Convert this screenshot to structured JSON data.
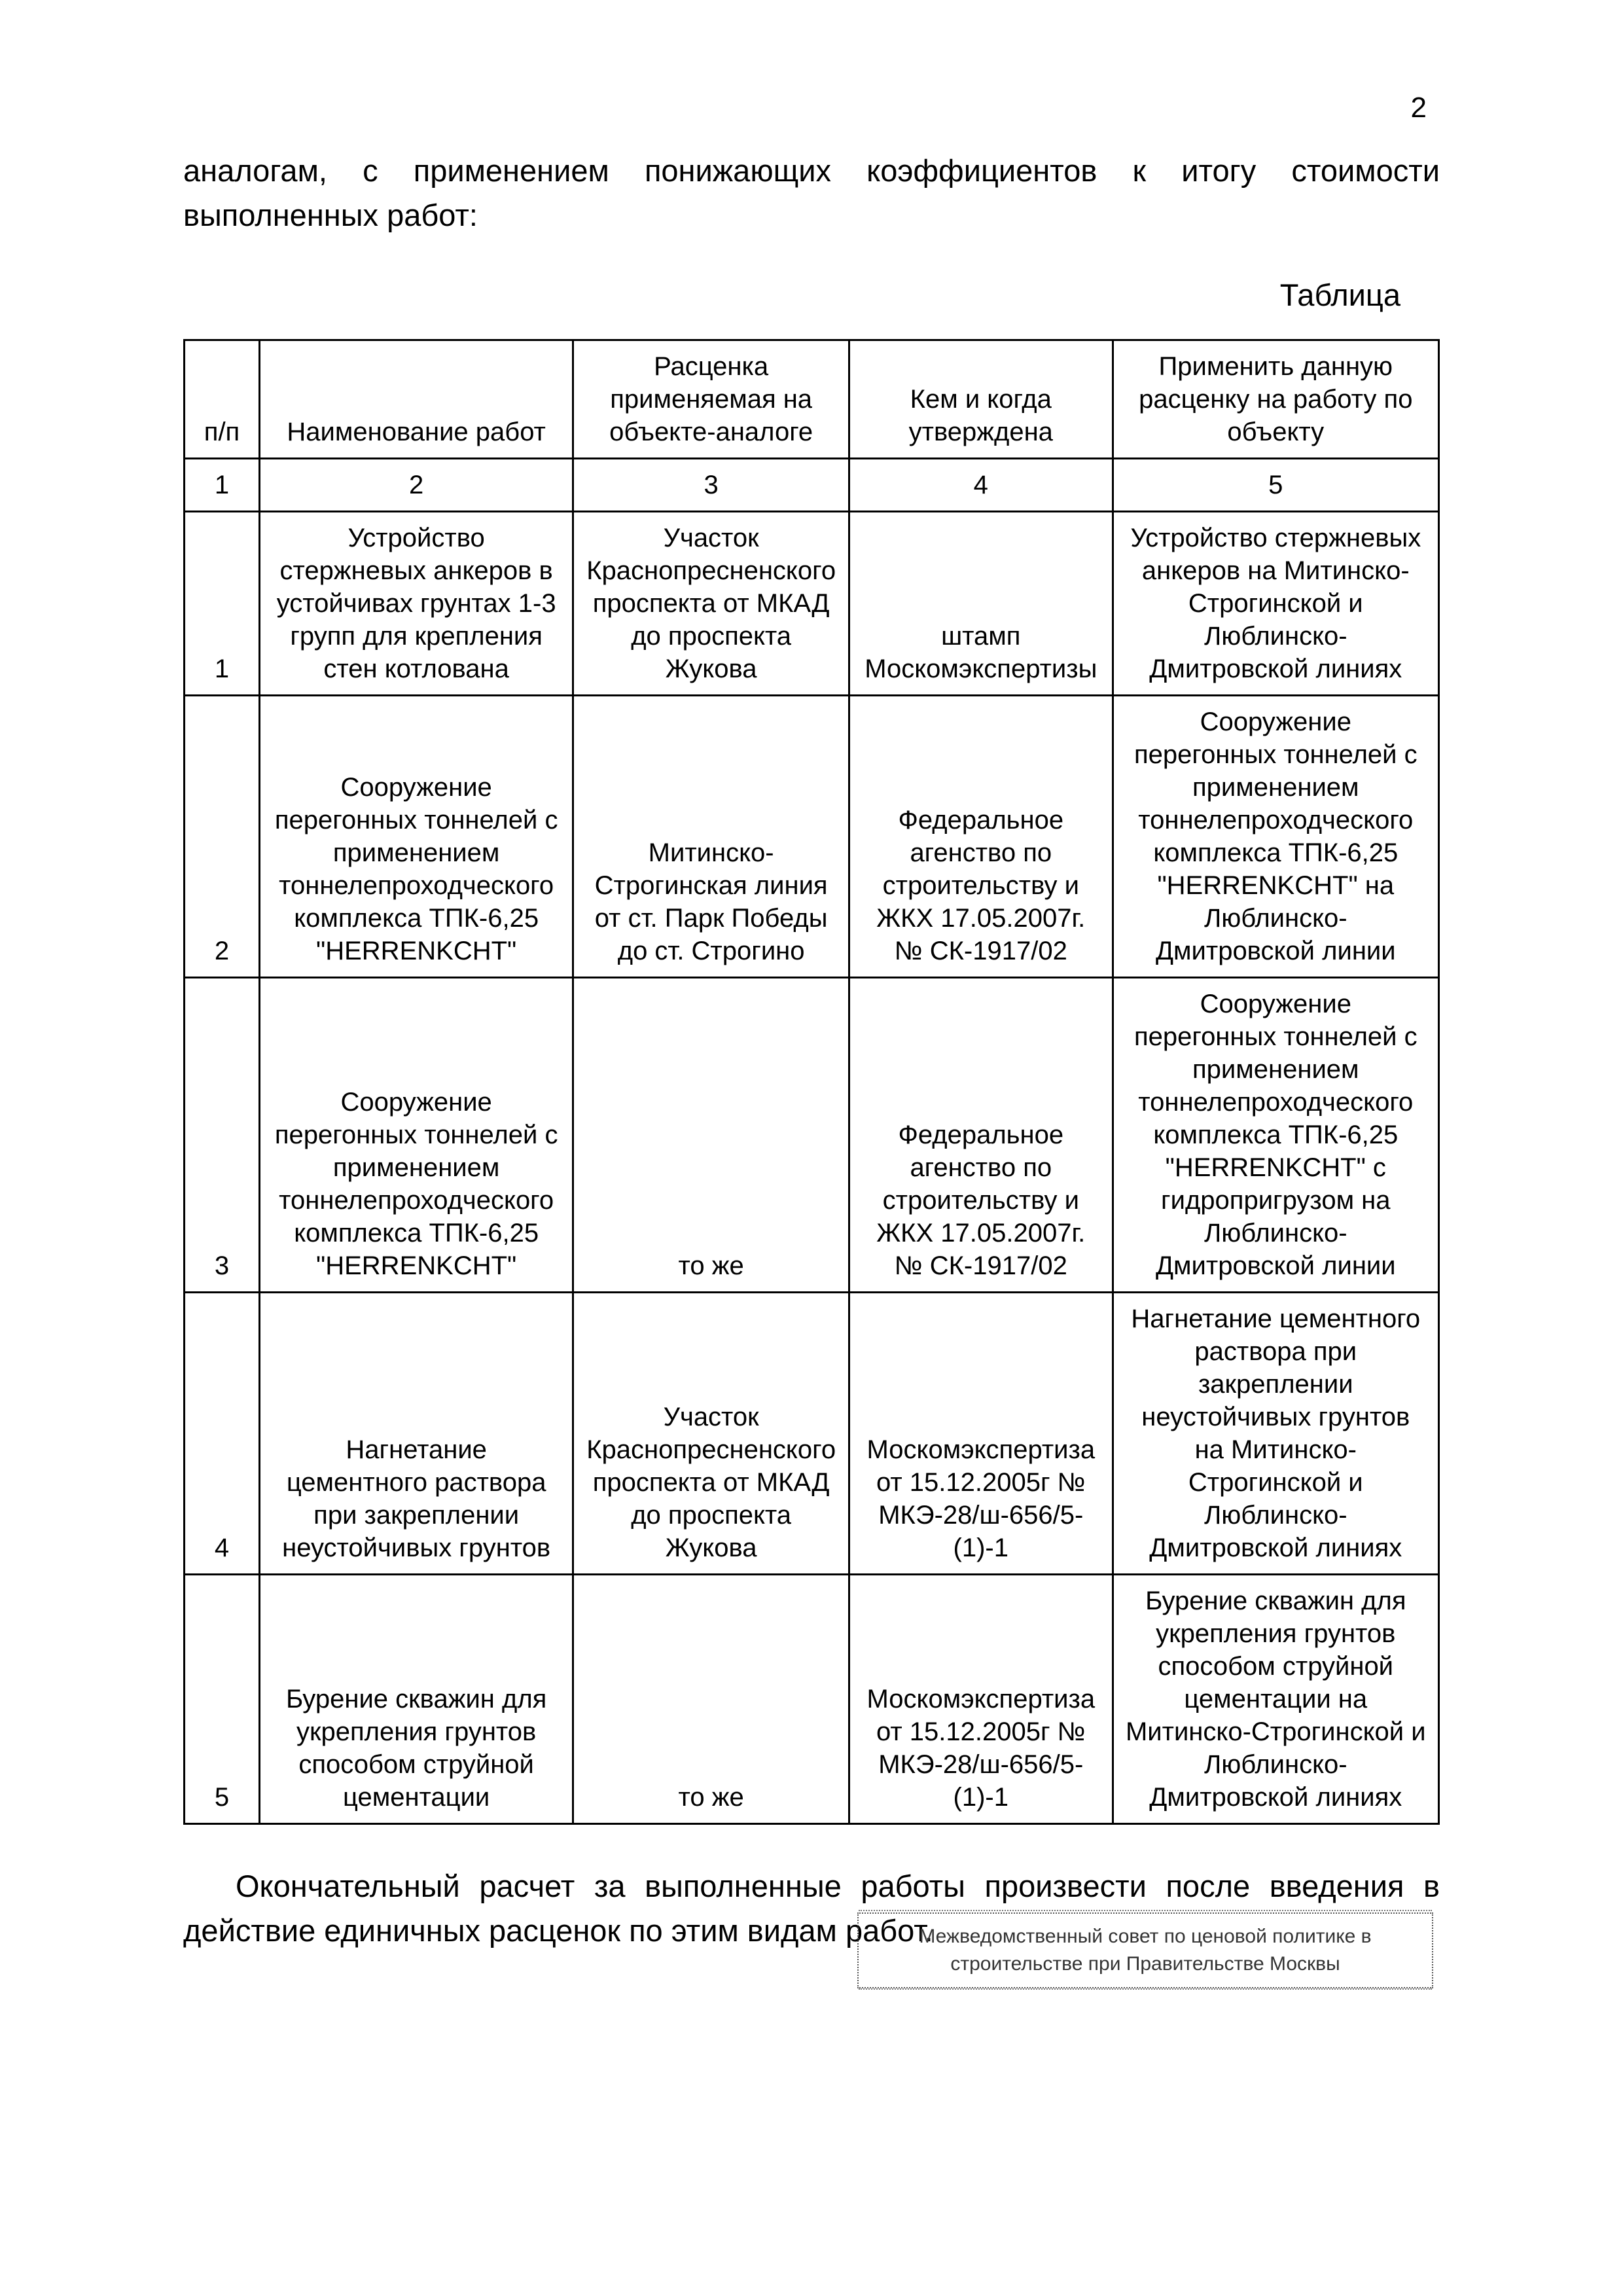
{
  "page_number": "2",
  "intro_text": "аналогам, с применением понижающих коэффициентов к итогу стоимости выполненных работ:",
  "table_caption": "Таблица",
  "columns": {
    "c1": "п/п",
    "c2": "Наименование работ",
    "c3": "Расценка применяемая на объекте-аналоге",
    "c4": "Кем и когда утверждена",
    "c5": "Применить данную расценку на работу по объекту"
  },
  "col_numbers": {
    "c1": "1",
    "c2": "2",
    "c3": "3",
    "c4": "4",
    "c5": "5"
  },
  "rows": [
    {
      "n": "1",
      "name": "Устройство стержневых анкеров в устойчивах грунтах 1-3 групп для крепления стен котлована",
      "rate": "Участок Краснопресненского проспекта от МКАД до проспекта Жукова",
      "approved": "штамп Москомэкспертизы",
      "apply": "Устройство стержневых анкеров на Митинско-Строгинской и Люблинско-Дмитровской линиях"
    },
    {
      "n": "2",
      "name": "Сооружение перегонных тоннелей с применением тоннелепроходческого комплекса ТПК-6,25 \"HERRENKCHT\"",
      "rate": "Митинско-Строгинская линия от ст. Парк Победы до ст. Строгино",
      "approved": "Федеральное агенство по строительству и ЖКХ 17.05.2007г. № СК-1917/02",
      "apply": "Сооружение перегонных тоннелей с применением тоннелепроходческого комплекса ТПК-6,25 \"HERRENKCHT\" на Люблинско-Дмитровской линии"
    },
    {
      "n": "3",
      "name": "Сооружение перегонных тоннелей с применением тоннелепроходческого комплекса ТПК-6,25 \"HERRENKCHT\"",
      "rate": "то же",
      "approved": "Федеральное агенство по строительству и ЖКХ 17.05.2007г. № СК-1917/02",
      "apply": "Сооружение перегонных тоннелей с применением тоннелепроходческого комплекса ТПК-6,25 \"HERRENKCHT\" с гидропригрузом на Люблинско-Дмитровской линии"
    },
    {
      "n": "4",
      "name": "Нагнетание цементного раствора при закреплении неустойчивых грунтов",
      "rate": "Участок Краснопресненского проспекта от МКАД до проспекта Жукова",
      "approved": "Москомэкспертиза от 15.12.2005г № МКЭ-28/ш-656/5-(1)-1",
      "apply": "Нагнетание цементного раствора при закреплении неустойчивых грунтов на Митинско-Строгинской и Люблинско-Дмитровской линиях"
    },
    {
      "n": "5",
      "name": "Бурение скважин для укрепления грунтов способом струйной цементации",
      "rate": "то же",
      "approved": "Москомэкспертиза от 15.12.2005г № МКЭ-28/ш-656/5-(1)-1",
      "apply": "Бурение скважин для укрепления грунтов способом струйной цементации на Митинско-Строгинской и Люблинско-Дмитровской линиях"
    }
  ],
  "outro_text": "Окончательный расчет за выполненные работы произвести после введения в действие единичных расценок по этим видам работ.",
  "stamp_text": "Межведомственный совет по ценовой политике в строительстве при Правительстве Москвы"
}
